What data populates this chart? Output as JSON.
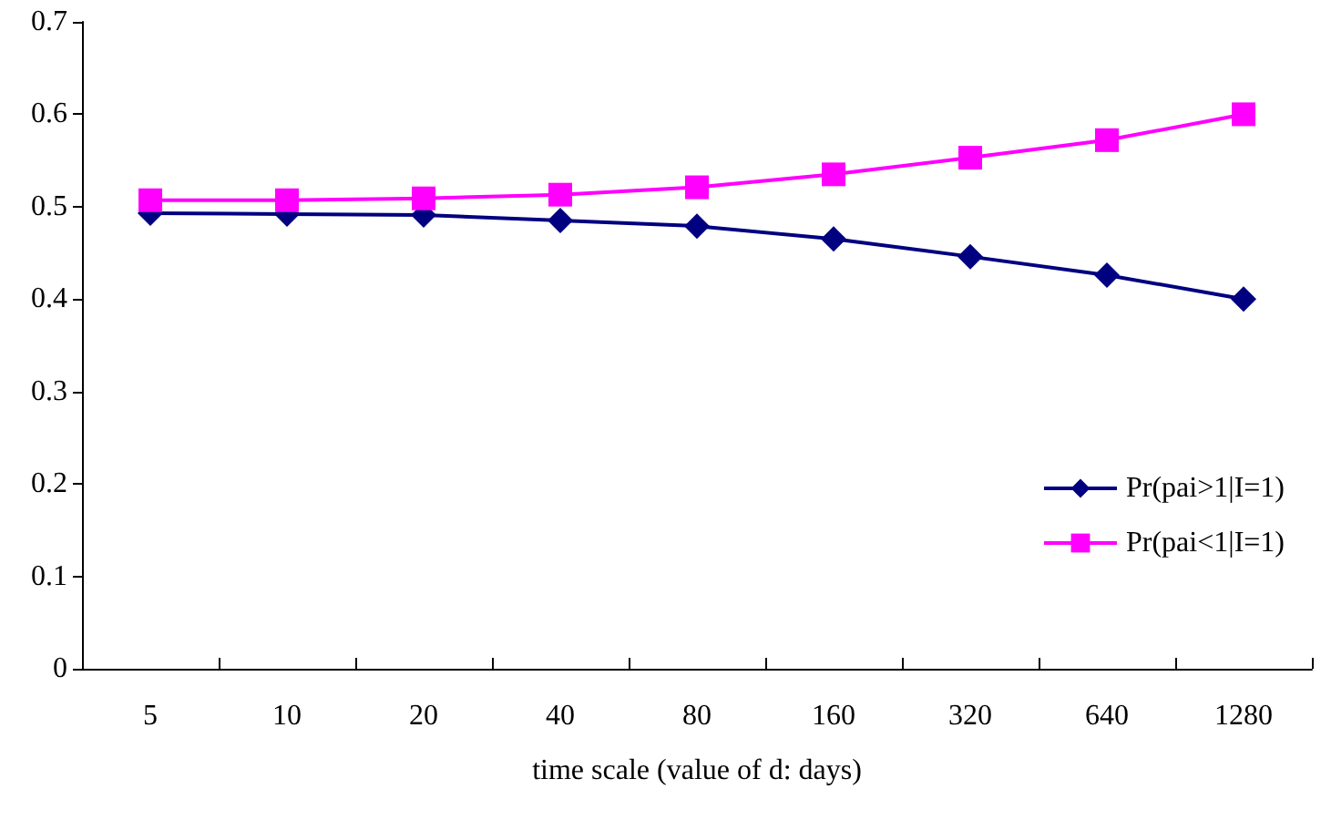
{
  "chart_data": {
    "type": "line",
    "xlabel": "time scale (value of d: days)",
    "categories": [
      "5",
      "10",
      "20",
      "40",
      "80",
      "160",
      "320",
      "640",
      "1280"
    ],
    "series": [
      {
        "name": "Pr(pai>1|I=1)",
        "color": "#000080",
        "marker": "diamond",
        "values": [
          0.493,
          0.492,
          0.491,
          0.485,
          0.479,
          0.465,
          0.446,
          0.426,
          0.4
        ]
      },
      {
        "name": "Pr(pai<1|I=1)",
        "color": "#ff00ff",
        "marker": "square",
        "values": [
          0.507,
          0.507,
          0.509,
          0.513,
          0.521,
          0.535,
          0.553,
          0.572,
          0.6
        ]
      }
    ],
    "ylim": [
      0,
      0.7
    ],
    "yticks": [
      0,
      0.1,
      0.2,
      0.3,
      0.4,
      0.5,
      0.6,
      0.7
    ],
    "grid": false,
    "legend": "right"
  }
}
